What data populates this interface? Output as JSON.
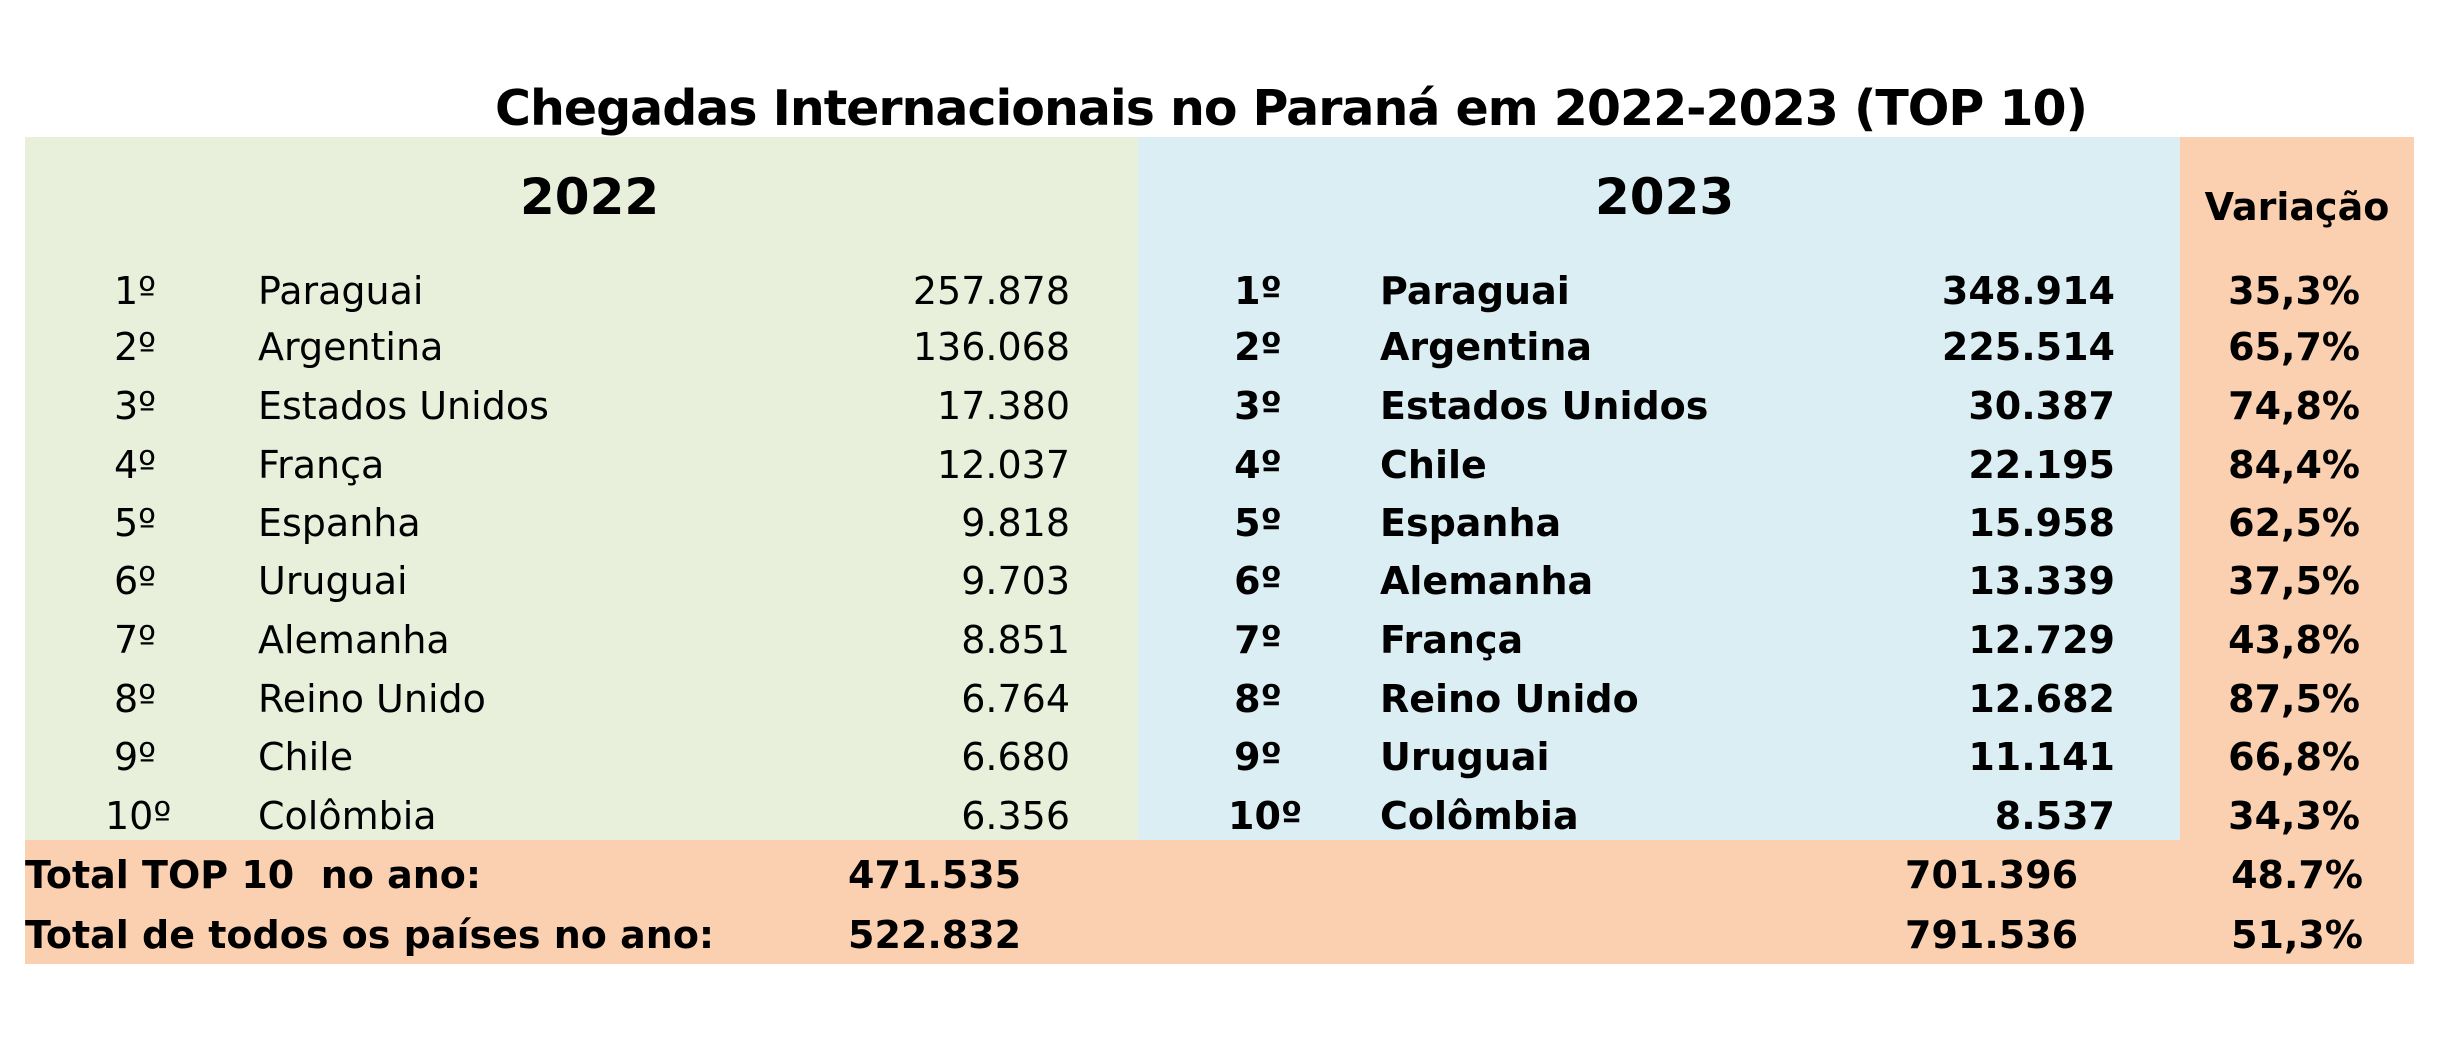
{
  "title": "Chegadas Internacionais no Paraná em 2022-2023 (TOP 10)",
  "year_2022": {
    "heading": "2022",
    "rows": [
      {
        "rank": "1º",
        "country": "Paraguai",
        "value": "257.878"
      },
      {
        "rank": "2º",
        "country": "Argentina",
        "value": "136.068"
      },
      {
        "rank": "3º",
        "country": "Estados Unidos",
        "value": "17.380"
      },
      {
        "rank": "4º",
        "country": "França",
        "value": "12.037"
      },
      {
        "rank": "5º",
        "country": "Espanha",
        "value": "9.818"
      },
      {
        "rank": "6º",
        "country": "Uruguai",
        "value": "9.703"
      },
      {
        "rank": "7º",
        "country": "Alemanha",
        "value": "8.851"
      },
      {
        "rank": "8º",
        "country": "Reino Unido",
        "value": "6.764"
      },
      {
        "rank": "9º",
        "country": "Chile",
        "value": "6.680"
      },
      {
        "rank": "10º",
        "country": "Colômbia",
        "value": "6.356"
      }
    ]
  },
  "year_2023": {
    "heading": "2023",
    "rows": [
      {
        "rank": "1º",
        "country": "Paraguai",
        "value": "348.914"
      },
      {
        "rank": "2º",
        "country": "Argentina",
        "value": "225.514"
      },
      {
        "rank": "3º",
        "country": "Estados Unidos",
        "value": "30.387"
      },
      {
        "rank": "4º",
        "country": "Chile",
        "value": "22.195"
      },
      {
        "rank": "5º",
        "country": "Espanha",
        "value": "15.958"
      },
      {
        "rank": "6º",
        "country": "Alemanha",
        "value": "13.339"
      },
      {
        "rank": "7º",
        "country": "França",
        "value": "12.729"
      },
      {
        "rank": "8º",
        "country": "Reino Unido",
        "value": "12.682"
      },
      {
        "rank": "9º",
        "country": "Uruguai",
        "value": "11.141"
      },
      {
        "rank": "10º",
        "country": "Colômbia",
        "value": "8.537"
      }
    ]
  },
  "variation": {
    "heading": "Variação",
    "values": [
      "35,3%",
      "65,7%",
      "74,8%",
      "84,4%",
      "62,5%",
      "37,5%",
      "43,8%",
      "87,5%",
      "66,8%",
      "34,3%"
    ]
  },
  "totals": [
    {
      "label": "Total TOP 10  no ano:",
      "v2022": "471.535",
      "v2023": "701.396",
      "variation": "48.7%"
    },
    {
      "label": "Total de todos os países no ano:",
      "v2022": "522.832",
      "v2023": "791.536",
      "variation": "51,3%"
    }
  ],
  "colors": {
    "panel_2022": "#e8f0dc",
    "panel_2023": "#dbeef4",
    "panel_variation": "#fbd0b0"
  }
}
